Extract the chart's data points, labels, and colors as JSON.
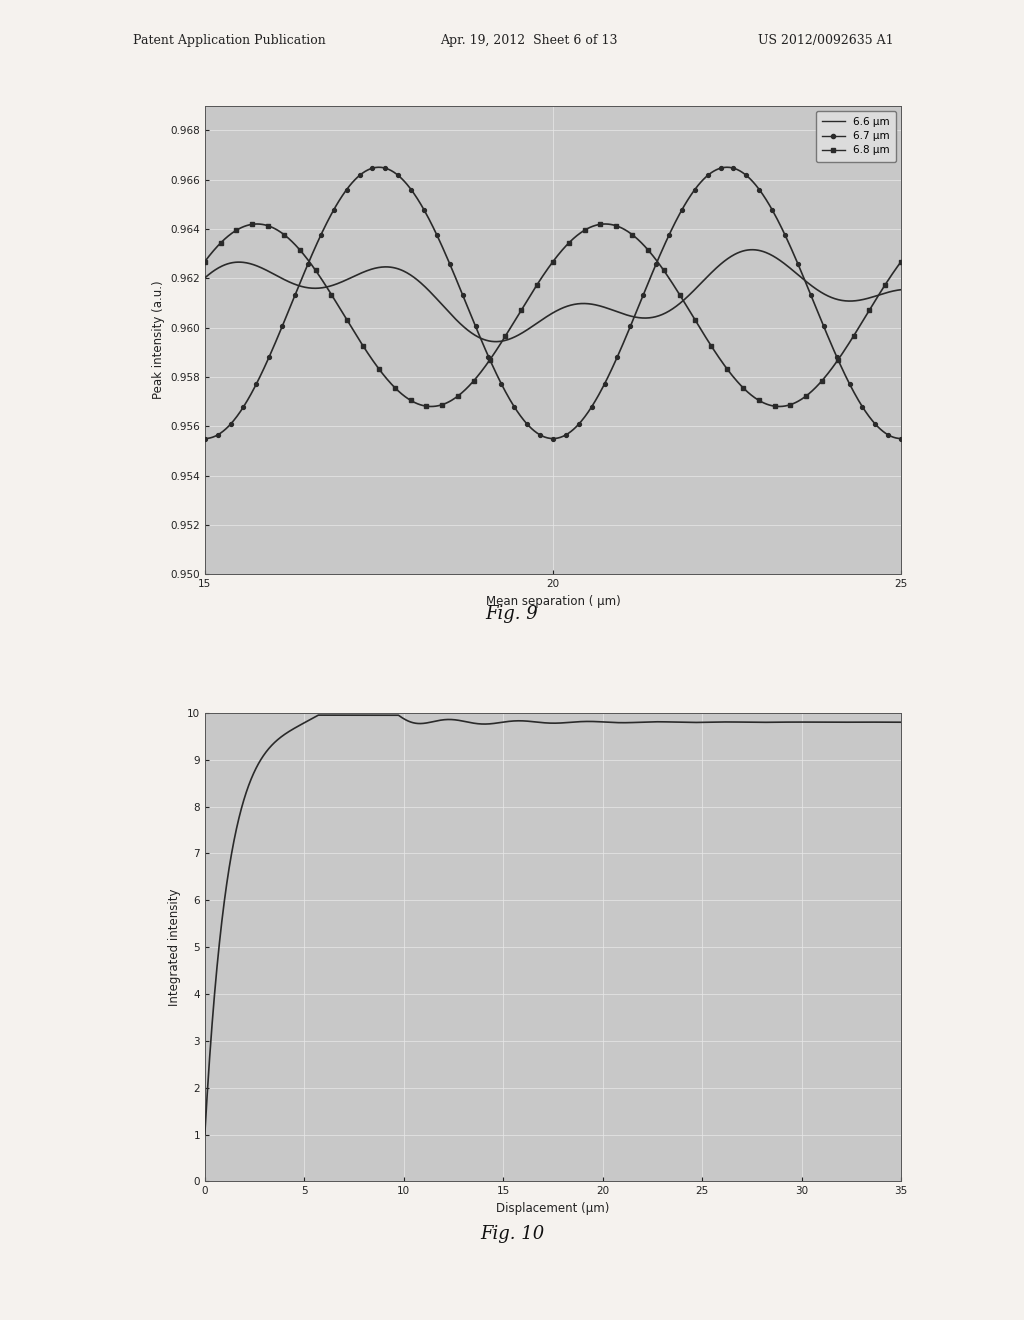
{
  "fig9": {
    "xlabel": "Mean separation ( μm)",
    "ylabel": "Peak intensity (a.u.)",
    "xlim": [
      15,
      25
    ],
    "ylim": [
      0.95,
      0.969
    ],
    "yticks": [
      0.95,
      0.952,
      0.954,
      0.956,
      0.958,
      0.96,
      0.962,
      0.964,
      0.966,
      0.968
    ],
    "xticks": [
      15,
      20,
      25
    ],
    "legend_labels": [
      "6.6 μm",
      "6.7 μm",
      "6.8 μm"
    ],
    "line_color": "#2a2a2a",
    "bg_color": "#c8c8c8",
    "grid_color": "#e8e8e8"
  },
  "fig10": {
    "xlabel": "Displacement (μm)",
    "ylabel": "Integrated intensity",
    "xlim": [
      0,
      35
    ],
    "ylim": [
      0,
      10
    ],
    "yticks": [
      0,
      1,
      2,
      3,
      4,
      5,
      6,
      7,
      8,
      9,
      10
    ],
    "xticks": [
      0,
      5,
      10,
      15,
      20,
      25,
      30,
      35
    ],
    "line_color": "#2a2a2a",
    "bg_color": "#c8c8c8",
    "grid_color": "#e8e8e8"
  },
  "header_left": "Patent Application Publication",
  "header_mid": "Apr. 19, 2012  Sheet 6 of 13",
  "header_right": "US 2012/0092635 A1",
  "fig9_label": "Fig. 9",
  "fig10_label": "Fig. 10",
  "background_color": "#f5f2ee"
}
